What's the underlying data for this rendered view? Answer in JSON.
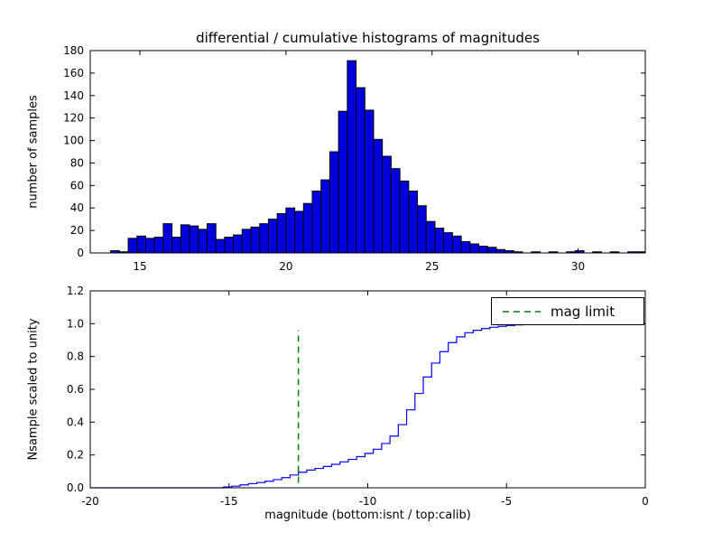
{
  "figure": {
    "title": "differential / cumulative histograms of magnitudes",
    "xlabel": "magnitude (bottom:isnt / top:calib)",
    "background": "#ffffff",
    "text_color": "#000000"
  },
  "chart_data": [
    {
      "type": "bar",
      "name": "differential-histogram",
      "title": "",
      "ylabel": "number of samples",
      "xlim": [
        13.3,
        32.3
      ],
      "ylim": [
        0,
        180
      ],
      "xticks": [
        {
          "v": 15,
          "label": "15"
        },
        {
          "v": 20,
          "label": "20"
        },
        {
          "v": 25,
          "label": "25"
        },
        {
          "v": 30,
          "label": "30"
        }
      ],
      "yticks": [
        {
          "v": 0,
          "label": "0"
        },
        {
          "v": 20,
          "label": "20"
        },
        {
          "v": 40,
          "label": "40"
        },
        {
          "v": 60,
          "label": "60"
        },
        {
          "v": 80,
          "label": "80"
        },
        {
          "v": 100,
          "label": "100"
        },
        {
          "v": 120,
          "label": "120"
        },
        {
          "v": 140,
          "label": "140"
        },
        {
          "v": 160,
          "label": "160"
        },
        {
          "v": 180,
          "label": "180"
        }
      ],
      "bin_start": 14.0,
      "bin_width": 0.3,
      "values": [
        2,
        1,
        13,
        15,
        13,
        14,
        26,
        14,
        25,
        24,
        21,
        26,
        12,
        14,
        16,
        21,
        23,
        26,
        30,
        35,
        40,
        37,
        44,
        55,
        65,
        90,
        126,
        171,
        147,
        127,
        101,
        86,
        75,
        64,
        55,
        42,
        28,
        22,
        18,
        15,
        10,
        8,
        6,
        5,
        3,
        2,
        1,
        0,
        1,
        0,
        1,
        0,
        1,
        2,
        0,
        1,
        0,
        1,
        0,
        1,
        1
      ],
      "bar_color": "#0000dd",
      "edge_color": "#000000",
      "grid": false
    },
    {
      "type": "line",
      "name": "cumulative-histogram",
      "title": "",
      "ylabel": "Nsample scaled to unity",
      "xlim": [
        -20,
        0
      ],
      "ylim": [
        0,
        1.2
      ],
      "xticks": [
        {
          "v": -20,
          "label": "-20"
        },
        {
          "v": -15,
          "label": "-15"
        },
        {
          "v": -10,
          "label": "-10"
        },
        {
          "v": -5,
          "label": "-5"
        },
        {
          "v": 0,
          "label": "0"
        }
      ],
      "yticks": [
        {
          "v": 0.0,
          "label": "0.0"
        },
        {
          "v": 0.2,
          "label": "0.2"
        },
        {
          "v": 0.4,
          "label": "0.4"
        },
        {
          "v": 0.6,
          "label": "0.6"
        },
        {
          "v": 0.8,
          "label": "0.8"
        },
        {
          "v": 1.0,
          "label": "1.0"
        },
        {
          "v": 1.2,
          "label": "1.2"
        }
      ],
      "step": true,
      "line_color": "#0000ff",
      "points": [
        [
          -20,
          0
        ],
        [
          -15.5,
          0
        ],
        [
          -15.2,
          0.005
        ],
        [
          -14.9,
          0.01
        ],
        [
          -14.6,
          0.018
        ],
        [
          -14.3,
          0.025
        ],
        [
          -14.0,
          0.032
        ],
        [
          -13.7,
          0.04
        ],
        [
          -13.4,
          0.05
        ],
        [
          -13.1,
          0.062
        ],
        [
          -12.8,
          0.078
        ],
        [
          -12.5,
          0.095
        ],
        [
          -12.2,
          0.108
        ],
        [
          -11.9,
          0.118
        ],
        [
          -11.6,
          0.13
        ],
        [
          -11.3,
          0.143
        ],
        [
          -11.0,
          0.158
        ],
        [
          -10.7,
          0.173
        ],
        [
          -10.4,
          0.19
        ],
        [
          -10.1,
          0.21
        ],
        [
          -9.8,
          0.235
        ],
        [
          -9.5,
          0.27
        ],
        [
          -9.2,
          0.315
        ],
        [
          -8.9,
          0.385
        ],
        [
          -8.6,
          0.475
        ],
        [
          -8.3,
          0.575
        ],
        [
          -8.0,
          0.675
        ],
        [
          -7.7,
          0.76
        ],
        [
          -7.4,
          0.83
        ],
        [
          -7.1,
          0.885
        ],
        [
          -6.8,
          0.92
        ],
        [
          -6.5,
          0.945
        ],
        [
          -6.2,
          0.96
        ],
        [
          -5.9,
          0.97
        ],
        [
          -5.6,
          0.978
        ],
        [
          -5.3,
          0.984
        ],
        [
          -5.0,
          0.989
        ],
        [
          -4.7,
          0.993
        ],
        [
          -4.4,
          0.996
        ],
        [
          -4.1,
          0.998
        ],
        [
          -3.8,
          1.0
        ],
        [
          0,
          1.0
        ]
      ],
      "vline": {
        "x": -12.5,
        "y0": 0.03,
        "y1": 0.96,
        "color": "#008000",
        "style": "dashed"
      },
      "legend_label": "mag limit",
      "legend_position": "upper right",
      "grid": false
    }
  ]
}
